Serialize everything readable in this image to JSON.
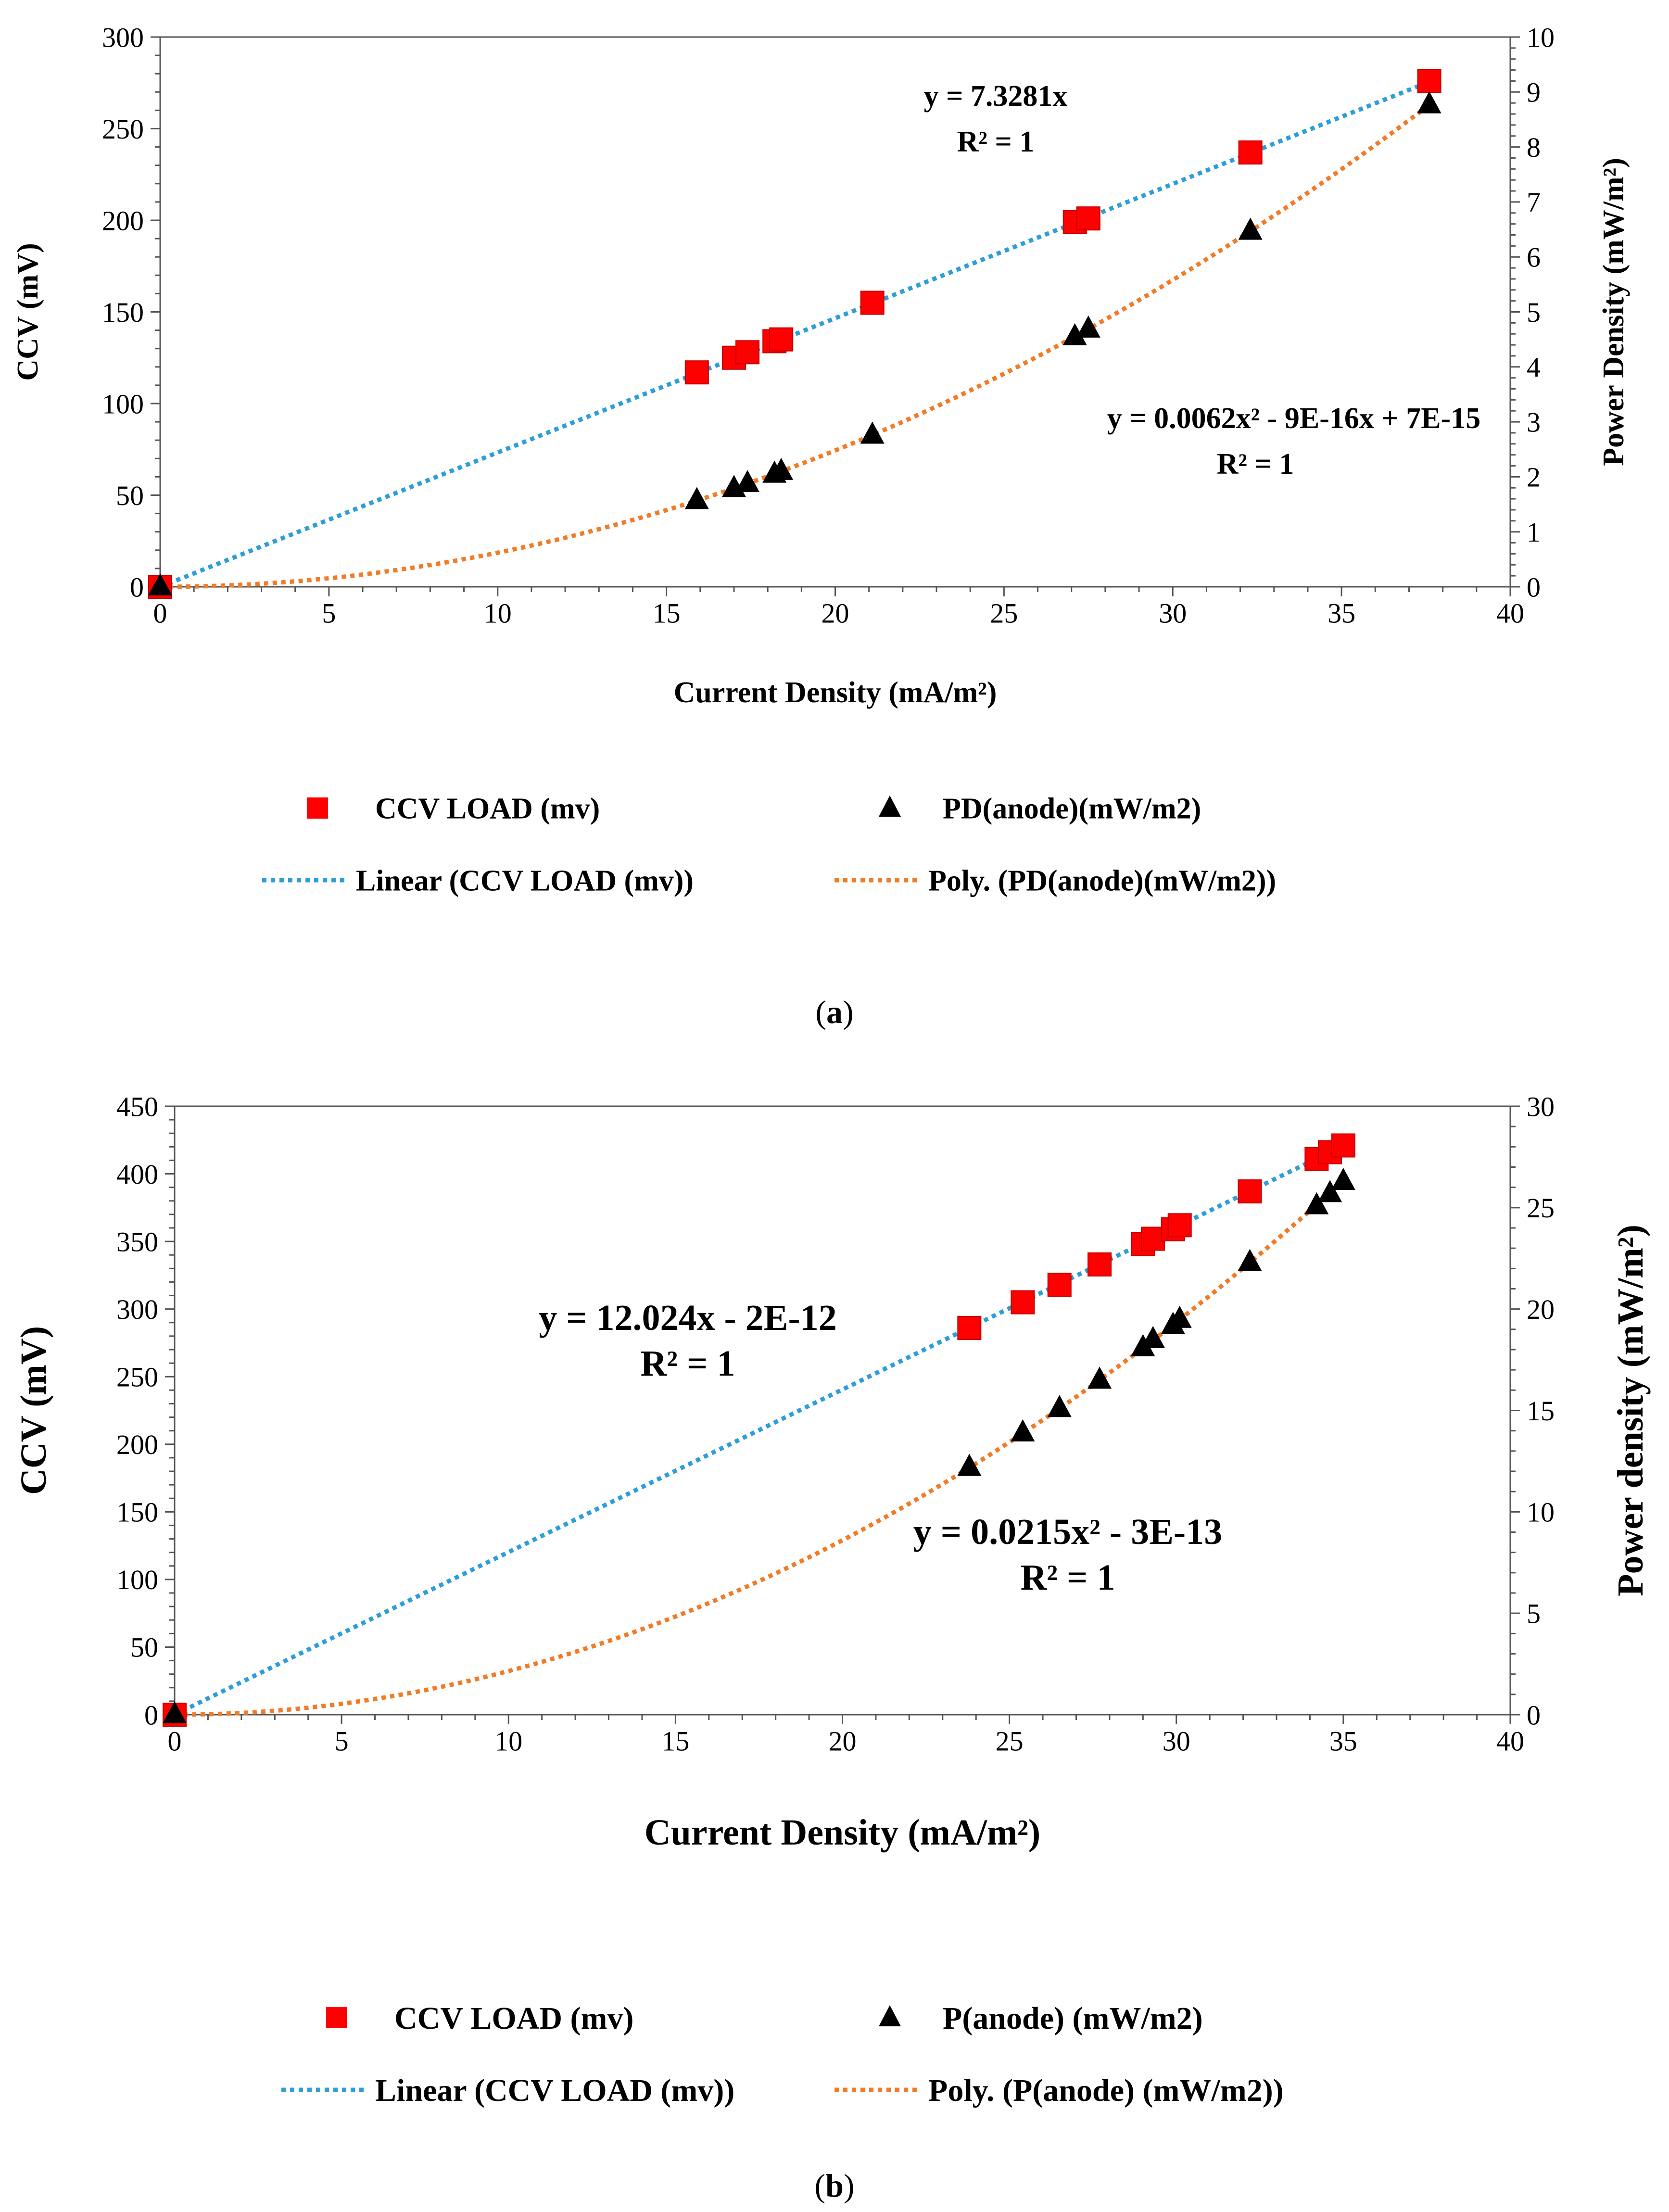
{
  "chart_data": [
    {
      "id": "a",
      "type": "scatter",
      "caption": {
        "open": "(",
        "letter": "a",
        "close": ")"
      },
      "xlabel": "Current Density (mA/m²)",
      "ylabel": "CCV (mV)",
      "y2label": "Power Density (mW/m²)",
      "xlim": [
        0,
        40
      ],
      "ylim": [
        0,
        300
      ],
      "y2lim": [
        0,
        10
      ],
      "xticks": [
        0,
        5,
        10,
        15,
        20,
        25,
        30,
        35,
        40
      ],
      "yticks": [
        0,
        50,
        100,
        150,
        200,
        250,
        300
      ],
      "y2ticks": [
        0,
        1,
        2,
        3,
        4,
        5,
        6,
        7,
        8,
        9,
        10
      ],
      "series": [
        {
          "name": "CCV LOAD (mv)",
          "axis": "left",
          "marker": "square",
          "color": "#ff0000",
          "x": [
            0,
            15.9,
            17.0,
            17.4,
            18.2,
            18.4,
            21.1,
            27.1,
            27.5,
            32.3,
            37.6
          ],
          "y": [
            0,
            117,
            125,
            128,
            134,
            135,
            155,
            199,
            201,
            237,
            276
          ]
        },
        {
          "name": "PD(anode)(mW/m2)",
          "axis": "right",
          "marker": "triangle",
          "color": "#000000",
          "x": [
            0,
            15.9,
            17.0,
            17.4,
            18.2,
            18.4,
            21.1,
            27.1,
            27.5,
            32.3,
            37.6
          ],
          "y": [
            0,
            1.57,
            1.79,
            1.88,
            2.05,
            2.1,
            2.76,
            4.55,
            4.69,
            6.47,
            8.77
          ]
        }
      ],
      "trendlines": [
        {
          "name": "Linear (CCV LOAD (mv))",
          "type": "linear",
          "axis": "left",
          "color": "#2e9ed8",
          "coef": [
            0,
            7.3281
          ],
          "range": [
            0,
            37.6
          ],
          "equation": "y = 7.3281x",
          "r2": "R² = 1"
        },
        {
          "name": "Poly. (PD(anode)(mW/m2))",
          "type": "poly",
          "axis": "right",
          "color": "#f07c28",
          "coef": [
            0,
            0,
            0.0062
          ],
          "range": [
            0,
            37.6
          ],
          "equation": "y = 0.0062x² - 9E-16x + 7E-15",
          "r2": "R² = 1"
        }
      ],
      "legend": [
        {
          "label": "CCV LOAD (mv)",
          "kind": "square",
          "color": "#ff0000"
        },
        {
          "label": "PD(anode)(mW/m2)",
          "kind": "triangle",
          "color": "#000000"
        },
        {
          "label": "Linear (CCV LOAD (mv))",
          "kind": "dotline",
          "color": "#2e9ed8"
        },
        {
          "label": "Poly. (PD(anode)(mW/m2))",
          "kind": "dotline",
          "color": "#f07c28"
        }
      ]
    },
    {
      "id": "b",
      "type": "scatter",
      "caption": {
        "open": "(",
        "letter": "b",
        "close": ")"
      },
      "xlabel": "Current Density (mA/m²)",
      "ylabel": "CCV (mV)",
      "y2label": "Power density (mW/m²)",
      "xlim": [
        0,
        40
      ],
      "ylim": [
        0,
        450
      ],
      "y2lim": [
        0,
        30
      ],
      "xticks": [
        0,
        5,
        10,
        15,
        20,
        25,
        30,
        35,
        40
      ],
      "yticks": [
        0,
        50,
        100,
        150,
        200,
        250,
        300,
        350,
        400,
        450
      ],
      "y2ticks": [
        0,
        5,
        10,
        15,
        20,
        25,
        30
      ],
      "series": [
        {
          "name": "CCV LOAD (mv)",
          "axis": "left",
          "marker": "square",
          "color": "#ff0000",
          "x": [
            0,
            23.8,
            25.4,
            26.5,
            27.7,
            29.0,
            29.3,
            29.9,
            30.1,
            32.2,
            34.2,
            34.6,
            35.0
          ],
          "y": [
            0,
            286,
            305,
            318,
            333,
            348,
            352,
            359,
            362,
            387,
            411,
            416,
            421
          ]
        },
        {
          "name": "P(anode) (mW/m2)",
          "axis": "right",
          "marker": "triangle",
          "color": "#000000",
          "x": [
            0,
            23.8,
            25.4,
            26.5,
            27.7,
            29.0,
            29.3,
            29.9,
            30.1,
            32.2,
            34.2,
            34.6,
            35.0
          ],
          "y": [
            0,
            12.2,
            13.9,
            15.1,
            16.5,
            18.1,
            18.5,
            19.2,
            19.5,
            22.3,
            25.1,
            25.7,
            26.3
          ]
        }
      ],
      "trendlines": [
        {
          "name": "Linear (CCV LOAD (mv))",
          "type": "linear",
          "axis": "left",
          "color": "#2e9ed8",
          "coef": [
            0,
            12.024
          ],
          "range": [
            0,
            35.0
          ],
          "equation": "y = 12.024x - 2E-12",
          "r2": "R² = 1"
        },
        {
          "name": "Poly. (P(anode) (mW/m2))",
          "type": "poly",
          "axis": "right",
          "color": "#f07c28",
          "coef": [
            0,
            0,
            0.0215
          ],
          "range": [
            0,
            35.0
          ],
          "equation": "y = 0.0215x² - 3E-13",
          "r2": "R² = 1"
        }
      ],
      "legend": [
        {
          "label": "CCV LOAD (mv)",
          "kind": "square",
          "color": "#ff0000"
        },
        {
          "label": "P(anode) (mW/m2)",
          "kind": "triangle",
          "color": "#000000"
        },
        {
          "label": "Linear (CCV LOAD (mv))",
          "kind": "dotline",
          "color": "#2e9ed8"
        },
        {
          "label": "Poly. (P(anode) (mW/m2))",
          "kind": "dotline",
          "color": "#f07c28"
        }
      ]
    }
  ]
}
